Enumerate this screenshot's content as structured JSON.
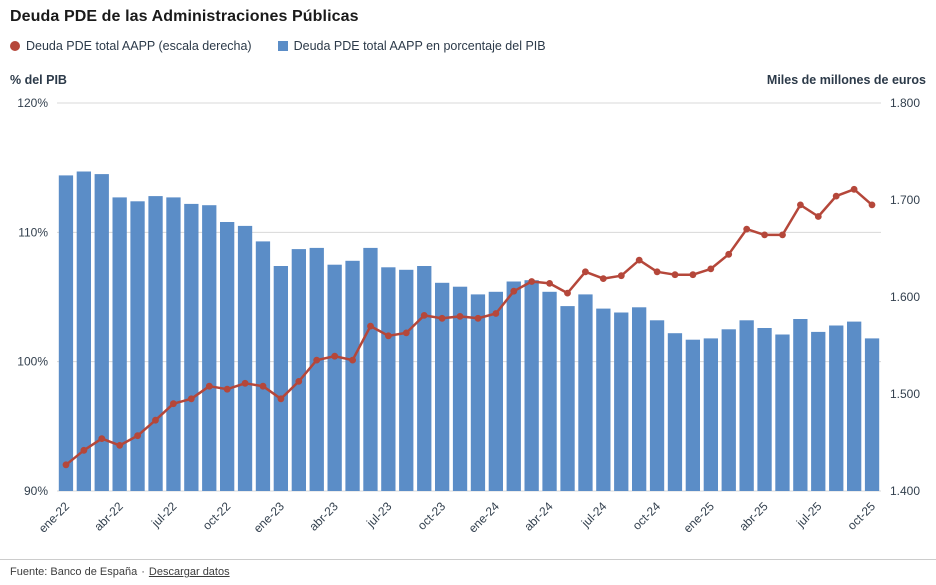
{
  "page": {
    "title": "Deuda PDE de las Administraciones Públicas",
    "footer": {
      "source": "Fuente: Banco de España",
      "separator": "·",
      "link_label": "Descargar datos"
    }
  },
  "legend": {
    "items": [
      {
        "label": "Deuda PDE total AAPP (escala derecha)",
        "marker": "circle",
        "color": "#b5473a"
      },
      {
        "label": "Deuda PDE total AAPP en porcentaje del PIB",
        "marker": "square",
        "color": "#5b8dc7"
      }
    ]
  },
  "axes": {
    "left_title": "% del PIB",
    "right_title": "Miles de millones de euros"
  },
  "chart_data": {
    "type": "combo",
    "x_label_every": 3,
    "grid": "horizontal",
    "legend_position": "top-left",
    "categories": [
      "ene-22",
      "feb-22",
      "mar-22",
      "abr-22",
      "may-22",
      "jun-22",
      "jul-22",
      "ago-22",
      "sep-22",
      "oct-22",
      "nov-22",
      "dic-22",
      "ene-23",
      "feb-23",
      "mar-23",
      "abr-23",
      "may-23",
      "jun-23",
      "jul-23",
      "ago-23",
      "sep-23",
      "oct-23",
      "nov-23",
      "dic-23",
      "ene-24",
      "feb-24",
      "mar-24",
      "abr-24",
      "may-24",
      "jun-24",
      "jul-24",
      "ago-24",
      "sep-24",
      "oct-24",
      "nov-24",
      "dic-24",
      "ene-25",
      "feb-25",
      "mar-25",
      "abr-25",
      "may-25",
      "jun-25",
      "jul-25",
      "ago-25",
      "sep-25",
      "oct-25"
    ],
    "series": [
      {
        "name": "Deuda PDE total AAPP en porcentaje del PIB",
        "type": "bar",
        "axis": "left",
        "color": "#5b8dc7",
        "values": [
          114.4,
          114.7,
          114.5,
          112.7,
          112.4,
          112.8,
          112.7,
          112.2,
          112.1,
          110.8,
          110.5,
          109.3,
          107.4,
          108.7,
          108.8,
          107.5,
          107.8,
          108.8,
          107.3,
          107.1,
          107.4,
          106.1,
          105.8,
          105.2,
          105.4,
          106.2,
          106.3,
          105.4,
          104.3,
          105.2,
          104.1,
          103.8,
          104.2,
          103.2,
          102.2,
          101.7,
          101.8,
          102.5,
          103.2,
          102.6,
          102.1,
          103.3,
          102.3,
          102.8,
          103.1,
          101.8
        ]
      },
      {
        "name": "Deuda PDE total AAPP (escala derecha)",
        "type": "line",
        "axis": "right",
        "color": "#b5473a",
        "values": [
          1427,
          1442,
          1454,
          1447,
          1457,
          1473,
          1490,
          1495,
          1508,
          1505,
          1511,
          1508,
          1495,
          1513,
          1535,
          1539,
          1535,
          1570,
          1560,
          1563,
          1581,
          1578,
          1580,
          1578,
          1583,
          1606,
          1616,
          1614,
          1604,
          1626,
          1619,
          1622,
          1638,
          1626,
          1623,
          1623,
          1629,
          1644,
          1670,
          1664,
          1664,
          1695,
          1683,
          1704,
          1711,
          1695
        ]
      }
    ],
    "left_axis": {
      "title": "% del PIB",
      "min": 90,
      "max": 120,
      "ticks": [
        {
          "value": 120,
          "label": "120%"
        },
        {
          "value": 110,
          "label": "110%"
        },
        {
          "value": 100,
          "label": "100%"
        },
        {
          "value": 90,
          "label": "90%"
        }
      ]
    },
    "right_axis": {
      "title": "Miles de millones de euros",
      "min": 1400,
      "max": 1800,
      "ticks": [
        {
          "value": 1800,
          "label": "1.800"
        },
        {
          "value": 1700,
          "label": "1.700"
        },
        {
          "value": 1600,
          "label": "1.600"
        },
        {
          "value": 1500,
          "label": "1.500"
        },
        {
          "value": 1400,
          "label": "1.400"
        }
      ]
    }
  }
}
